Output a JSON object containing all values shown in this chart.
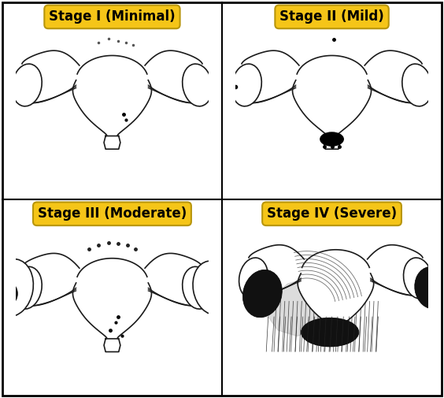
{
  "stages": [
    {
      "label": "Stage I (Minimal)",
      "row": 0,
      "col": 0
    },
    {
      "label": "Stage II (Mild)",
      "row": 0,
      "col": 1
    },
    {
      "label": "Stage III (Moderate)",
      "row": 1,
      "col": 0
    },
    {
      "label": "Stage IV (Severe)",
      "row": 1,
      "col": 1
    }
  ],
  "label_bg_color": "#F5C518",
  "label_text_color": "#000000",
  "border_color": "#000000",
  "background_color": "#FFFFFF",
  "label_fontsize": 12,
  "label_fontweight": "bold",
  "figsize": [
    5.64,
    5.05
  ],
  "dpi": 100,
  "line_color": "#1a1a1a",
  "line_width": 1.2
}
